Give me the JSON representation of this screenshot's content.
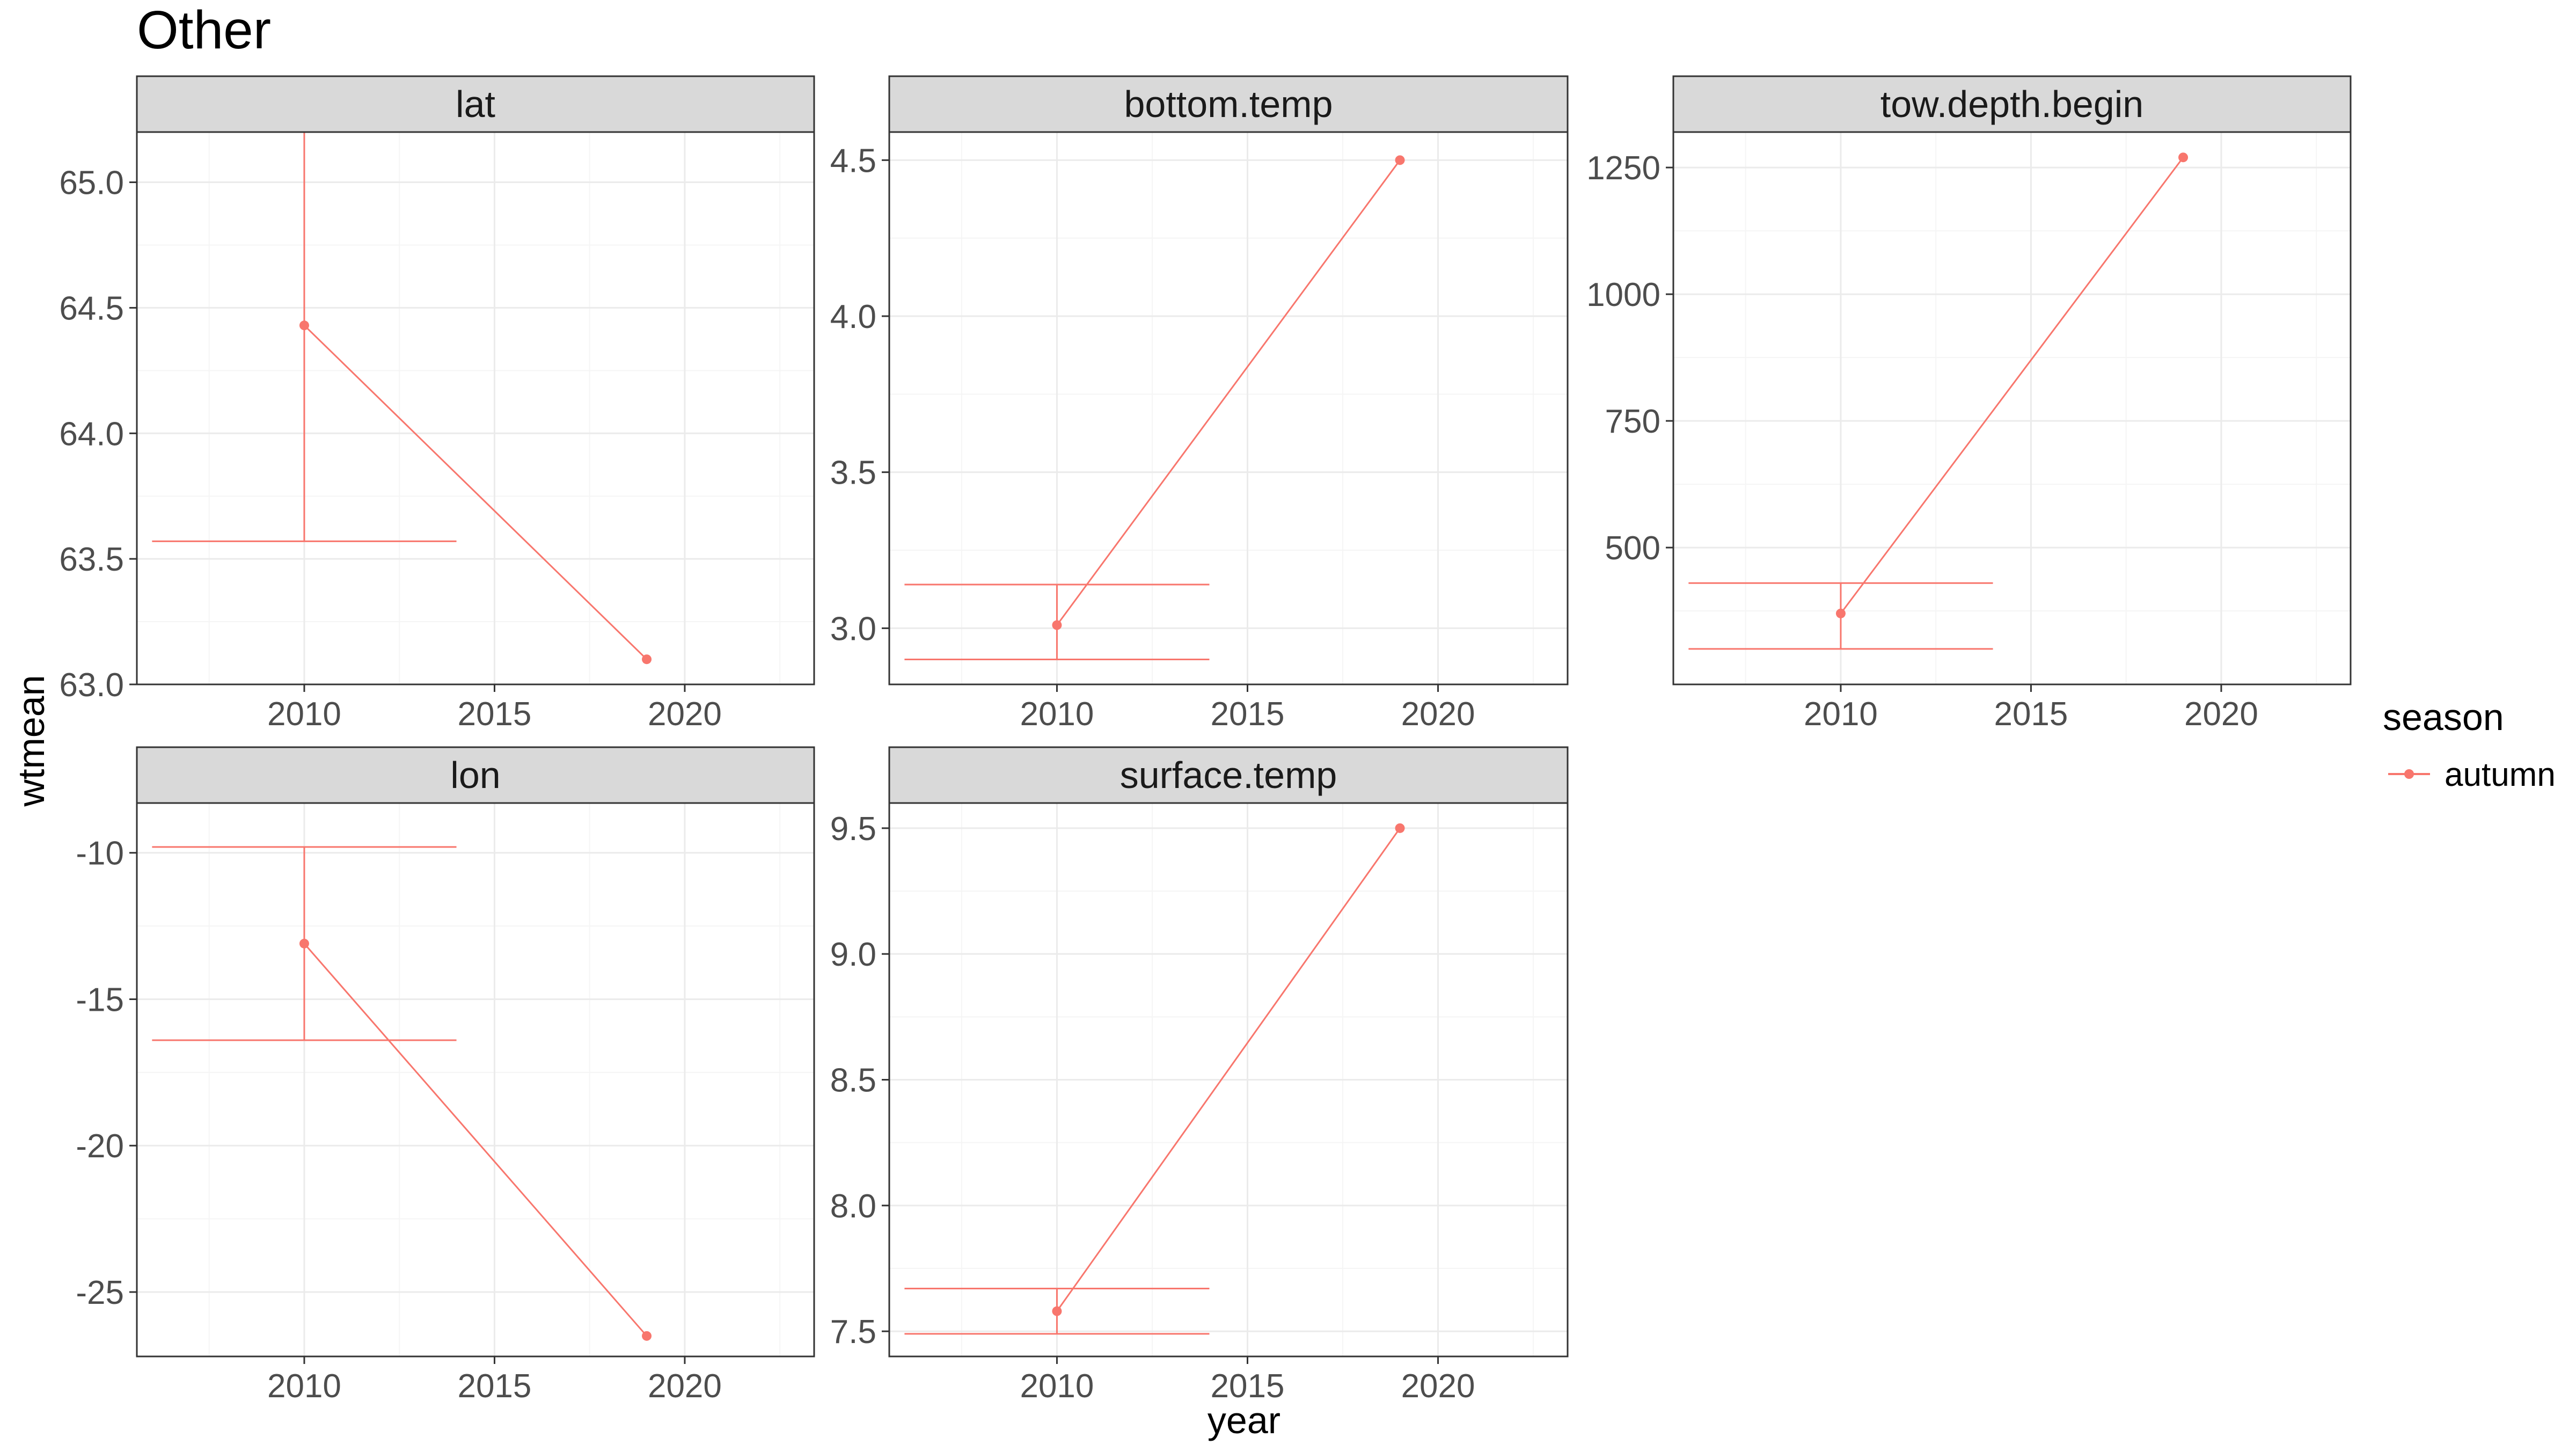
{
  "title": "Other",
  "xlabel": "year",
  "ylabel": "wtmean",
  "legend": {
    "title": "season",
    "label": "autumn",
    "position": "right"
  },
  "colors": {
    "series": "#F8766D",
    "strip_fill": "#D9D9D9",
    "panel_border": "#333333",
    "grid_major": "#EBEBEB",
    "grid_minor": "#F5F5F5",
    "tick_text": "#4D4D4D"
  },
  "chart_data": [
    {
      "type": "line",
      "panel": "lat",
      "x_ticks": [
        2010,
        2015,
        2020
      ],
      "y_ticks": [
        "63.0",
        "63.5",
        "64.0",
        "64.5",
        "65.0"
      ],
      "xlim": [
        2005.6,
        2023.4
      ],
      "ylim": [
        63.0,
        65.2
      ],
      "series": [
        {
          "name": "autumn",
          "x": [
            2010,
            2019
          ],
          "y": [
            64.43,
            63.1
          ]
        }
      ],
      "errorbar": {
        "x": 2010,
        "ymin": 63.57,
        "ymax": 65.29,
        "xmin": 2006,
        "xmax": 2014
      },
      "grid": true
    },
    {
      "type": "line",
      "panel": "bottom.temp",
      "x_ticks": [
        2010,
        2015,
        2020
      ],
      "y_ticks": [
        "3.0",
        "3.5",
        "4.0",
        "4.5"
      ],
      "xlim": [
        2005.6,
        2023.4
      ],
      "ylim": [
        2.82,
        4.59
      ],
      "series": [
        {
          "name": "autumn",
          "x": [
            2010,
            2019
          ],
          "y": [
            3.01,
            4.5
          ]
        }
      ],
      "errorbar": {
        "x": 2010,
        "ymin": 2.9,
        "ymax": 3.14,
        "xmin": 2006,
        "xmax": 2014
      },
      "grid": true
    },
    {
      "type": "line",
      "panel": "tow.depth.begin",
      "x_ticks": [
        2010,
        2015,
        2020
      ],
      "y_ticks": [
        "500",
        "750",
        "1000",
        "1250"
      ],
      "xlim": [
        2005.6,
        2023.4
      ],
      "ylim": [
        230,
        1320
      ],
      "series": [
        {
          "name": "autumn",
          "x": [
            2010,
            2019
          ],
          "y": [
            370,
            1270
          ]
        }
      ],
      "errorbar": {
        "x": 2010,
        "ymin": 300,
        "ymax": 430,
        "xmin": 2006,
        "xmax": 2014
      },
      "grid": true
    },
    {
      "type": "line",
      "panel": "lon",
      "x_ticks": [
        2010,
        2015,
        2020
      ],
      "y_ticks": [
        "-25",
        "-20",
        "-15",
        "-10"
      ],
      "xlim": [
        2005.6,
        2023.4
      ],
      "ylim": [
        -27.2,
        -8.3
      ],
      "series": [
        {
          "name": "autumn",
          "x": [
            2010,
            2019
          ],
          "y": [
            -13.1,
            -26.5
          ]
        }
      ],
      "errorbar": {
        "x": 2010,
        "ymin": -16.4,
        "ymax": -9.8,
        "xmin": 2006,
        "xmax": 2014
      },
      "grid": true
    },
    {
      "type": "line",
      "panel": "surface.temp",
      "x_ticks": [
        2010,
        2015,
        2020
      ],
      "y_ticks": [
        "7.5",
        "8.0",
        "8.5",
        "9.0",
        "9.5"
      ],
      "xlim": [
        2005.6,
        2023.4
      ],
      "ylim": [
        7.4,
        9.6
      ],
      "series": [
        {
          "name": "autumn",
          "x": [
            2010,
            2019
          ],
          "y": [
            7.58,
            9.5
          ]
        }
      ],
      "errorbar": {
        "x": 2010,
        "ymin": 7.49,
        "ymax": 7.67,
        "xmin": 2006,
        "xmax": 2014
      },
      "grid": true
    }
  ]
}
